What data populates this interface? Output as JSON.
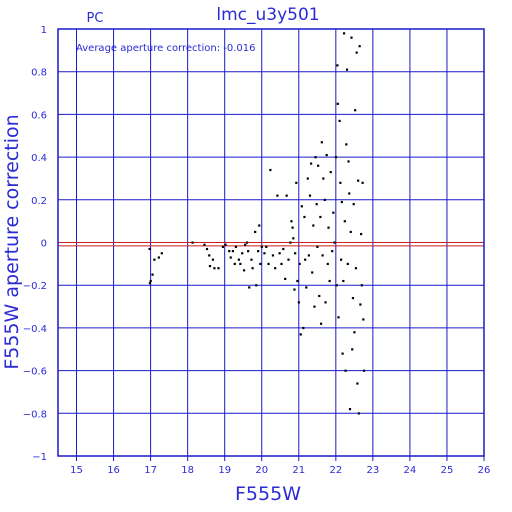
{
  "header": {
    "title": "lmc_u3y501",
    "corner_label": "PC",
    "annotation": "Average aperture correction: -0.016"
  },
  "colors": {
    "axes": "#1a1acc",
    "text": "#2b2bd6",
    "points": "#000000",
    "reference_line": "#cc2020"
  },
  "chart_data": {
    "type": "scatter",
    "title": "lmc_u3y501",
    "xlabel": "F555W",
    "ylabel": "F555W aperture correction",
    "xlim": [
      14.5,
      26
    ],
    "ylim": [
      -1,
      1
    ],
    "xticks": [
      15,
      16,
      17,
      18,
      19,
      20,
      21,
      22,
      23,
      24,
      25,
      26
    ],
    "yticks": [
      -1,
      -0.8,
      -0.6,
      -0.4,
      -0.2,
      0,
      0.2,
      0.4,
      0.6,
      0.8,
      1
    ],
    "xtick_labels": [
      "15",
      "16",
      "17",
      "18",
      "19",
      "20",
      "21",
      "22",
      "23",
      "24",
      "25",
      "26"
    ],
    "ytick_labels": [
      "−1",
      "−0.8",
      "−0.6",
      "−0.4",
      "−0.2",
      "0",
      "0.2",
      "0.4",
      "0.6",
      "0.8",
      "1"
    ],
    "grid": true,
    "reference_lines": [
      {
        "axis": "y",
        "value": 0
      },
      {
        "axis": "y",
        "value": -0.016
      }
    ],
    "points": [
      [
        16.97,
        -0.03
      ],
      [
        17.0,
        -0.18
      ],
      [
        16.98,
        -0.19
      ],
      [
        17.05,
        -0.15
      ],
      [
        17.1,
        -0.08
      ],
      [
        17.22,
        -0.07
      ],
      [
        17.3,
        -0.05
      ],
      [
        18.13,
        0.0
      ],
      [
        18.45,
        -0.01
      ],
      [
        18.52,
        -0.03
      ],
      [
        18.58,
        -0.06
      ],
      [
        18.6,
        -0.11
      ],
      [
        18.68,
        -0.08
      ],
      [
        18.72,
        -0.12
      ],
      [
        18.83,
        -0.12
      ],
      [
        18.95,
        -0.02
      ],
      [
        19.02,
        -0.01
      ],
      [
        19.12,
        -0.04
      ],
      [
        19.16,
        -0.07
      ],
      [
        19.22,
        -0.04
      ],
      [
        19.27,
        -0.1
      ],
      [
        19.3,
        -0.02
      ],
      [
        19.38,
        -0.08
      ],
      [
        19.42,
        -0.1
      ],
      [
        19.47,
        -0.05
      ],
      [
        19.52,
        -0.13
      ],
      [
        19.55,
        -0.01
      ],
      [
        19.6,
        0.0
      ],
      [
        19.63,
        -0.04
      ],
      [
        19.66,
        -0.21
      ],
      [
        19.72,
        -0.08
      ],
      [
        19.75,
        -0.12
      ],
      [
        19.82,
        0.05
      ],
      [
        19.85,
        -0.2
      ],
      [
        19.9,
        -0.04
      ],
      [
        19.93,
        0.08
      ],
      [
        19.96,
        -0.1
      ],
      [
        20.0,
        -0.02
      ],
      [
        20.07,
        -0.05
      ],
      [
        20.12,
        -0.02
      ],
      [
        20.18,
        -0.1
      ],
      [
        20.23,
        0.34
      ],
      [
        20.3,
        -0.06
      ],
      [
        20.36,
        -0.12
      ],
      [
        20.42,
        0.22
      ],
      [
        20.48,
        -0.05
      ],
      [
        20.53,
        -0.1
      ],
      [
        20.58,
        -0.03
      ],
      [
        20.63,
        -0.17
      ],
      [
        20.67,
        0.22
      ],
      [
        20.72,
        -0.08
      ],
      [
        20.77,
        0.0
      ],
      [
        20.8,
        0.1
      ],
      [
        20.83,
        0.07
      ],
      [
        20.85,
        0.02
      ],
      [
        20.88,
        -0.22
      ],
      [
        20.9,
        -0.05
      ],
      [
        20.93,
        0.28
      ],
      [
        20.96,
        -0.18
      ],
      [
        21.0,
        -0.28
      ],
      [
        21.02,
        -0.1
      ],
      [
        21.05,
        -0.43
      ],
      [
        21.08,
        0.17
      ],
      [
        21.12,
        -0.4
      ],
      [
        21.15,
        0.12
      ],
      [
        21.17,
        -0.08
      ],
      [
        21.2,
        -0.21
      ],
      [
        21.24,
        0.3
      ],
      [
        21.27,
        -0.06
      ],
      [
        21.3,
        0.22
      ],
      [
        21.33,
        0.37
      ],
      [
        21.36,
        -0.14
      ],
      [
        21.39,
        0.08
      ],
      [
        21.42,
        -0.3
      ],
      [
        21.45,
        0.4
      ],
      [
        21.48,
        0.18
      ],
      [
        21.5,
        -0.02
      ],
      [
        21.52,
        0.36
      ],
      [
        21.55,
        -0.25
      ],
      [
        21.58,
        0.12
      ],
      [
        21.6,
        -0.38
      ],
      [
        21.62,
        0.47
      ],
      [
        21.64,
        -0.06
      ],
      [
        21.66,
        0.3
      ],
      [
        21.7,
        0.2
      ],
      [
        21.72,
        -0.28
      ],
      [
        21.75,
        0.41
      ],
      [
        21.78,
        -0.1
      ],
      [
        21.8,
        0.07
      ],
      [
        21.83,
        -0.18
      ],
      [
        21.86,
        0.33
      ],
      [
        21.9,
        -0.04
      ],
      [
        21.93,
        0.14
      ],
      [
        21.96,
        0.0
      ],
      [
        22.0,
        0.4
      ],
      [
        22.02,
        -0.2
      ],
      [
        22.04,
        0.83
      ],
      [
        22.05,
        0.65
      ],
      [
        22.07,
        -0.35
      ],
      [
        22.1,
        0.57
      ],
      [
        22.12,
        0.28
      ],
      [
        22.14,
        -0.08
      ],
      [
        22.16,
        0.19
      ],
      [
        22.18,
        -0.52
      ],
      [
        22.2,
        -0.18
      ],
      [
        22.22,
        0.98
      ],
      [
        22.24,
        0.1
      ],
      [
        22.26,
        -0.6
      ],
      [
        22.28,
        0.46
      ],
      [
        22.3,
        0.81
      ],
      [
        22.32,
        -0.1
      ],
      [
        22.34,
        0.38
      ],
      [
        22.36,
        0.23
      ],
      [
        22.38,
        -0.78
      ],
      [
        22.4,
        0.05
      ],
      [
        22.42,
        0.96
      ],
      [
        22.44,
        -0.5
      ],
      [
        22.46,
        -0.26
      ],
      [
        22.48,
        0.18
      ],
      [
        22.5,
        -0.42
      ],
      [
        22.52,
        0.62
      ],
      [
        22.54,
        -0.12
      ],
      [
        22.56,
        0.89
      ],
      [
        22.58,
        -0.66
      ],
      [
        22.6,
        0.29
      ],
      [
        22.62,
        -0.8
      ],
      [
        22.64,
        0.92
      ],
      [
        22.66,
        -0.29
      ],
      [
        22.68,
        0.04
      ],
      [
        22.7,
        -0.2
      ],
      [
        22.72,
        0.28
      ],
      [
        22.74,
        -0.36
      ],
      [
        22.76,
        -0.6
      ]
    ]
  }
}
